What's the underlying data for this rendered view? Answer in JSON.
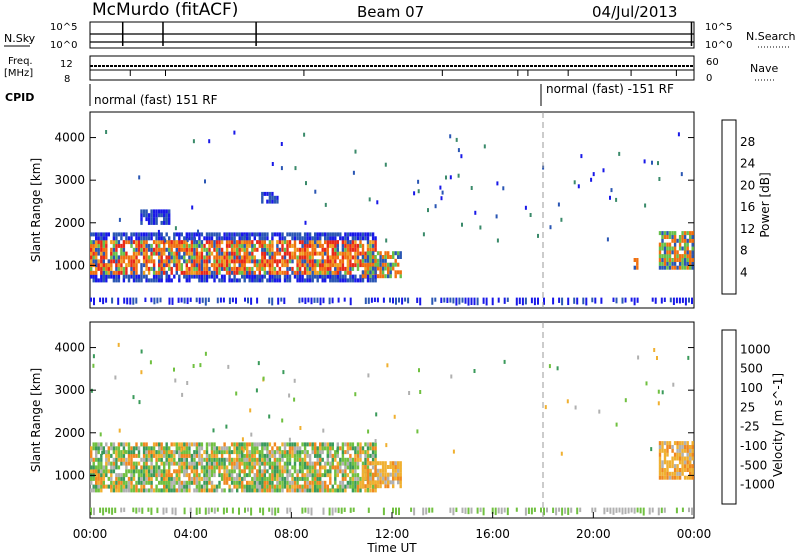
{
  "header": {
    "radar": "McMurdo (fitACF)",
    "beam": "Beam 07",
    "date": "04/Jul/2013"
  },
  "left_labels": {
    "nsky": "N.Sky",
    "freq_line1": "Freq.",
    "freq_line2": "[MHz]",
    "cpid": "CPID"
  },
  "right_labels": {
    "nsearch": "N.Search",
    "nave": "Nave"
  },
  "noise_axis": {
    "top": "10^5",
    "bottom": "10^0"
  },
  "freq_axis": {
    "left_top": "12",
    "left_bottom": "8",
    "right_top": "60",
    "right_bottom": "0"
  },
  "cpid_segments": [
    {
      "label": "normal (fast) 151 RF",
      "start_hour": 0
    },
    {
      "label": "normal (fast) -151 RF",
      "start_hour": 18
    }
  ],
  "chart_data": [
    {
      "type": "heatmap",
      "title": "Power",
      "ylabel": "Slant Range [km]",
      "xlabel": "Time UT",
      "colorbar_label": "Power [dB]",
      "colorbar_ticks": [
        "4",
        "8",
        "12",
        "16",
        "20",
        "24",
        "28"
      ],
      "colorbar_colors": [
        "#1818e8",
        "#2a56b4",
        "#3a8a6a",
        "#66c04a",
        "#c8d23a",
        "#f0a020",
        "#f07010",
        "#e82818"
      ],
      "x_range_hours": [
        0,
        24
      ],
      "ylim": [
        0,
        4600
      ],
      "yticks": [
        "1000",
        "2000",
        "3000",
        "4000"
      ],
      "xticks": [
        "00:00",
        "04:00",
        "08:00",
        "12:00",
        "16:00",
        "20:00",
        "00:00"
      ],
      "regions": [
        {
          "t0": 0.0,
          "t1": 11.3,
          "r0": 600,
          "r1": 1700,
          "level": "high"
        },
        {
          "t0": 10.8,
          "t1": 12.3,
          "r0": 700,
          "r1": 1300,
          "level": "mid"
        },
        {
          "t0": 2.0,
          "t1": 3.2,
          "r0": 1950,
          "r1": 2250,
          "level": "low"
        },
        {
          "t0": 6.8,
          "t1": 7.4,
          "r0": 2450,
          "r1": 2700,
          "level": "low"
        },
        {
          "t0": 22.6,
          "t1": 24.0,
          "r0": 900,
          "r1": 1800,
          "level": "mid"
        },
        {
          "t0": 21.6,
          "t1": 21.8,
          "r0": 900,
          "r1": 1100,
          "level": "mid"
        }
      ]
    },
    {
      "type": "heatmap",
      "title": "Velocity",
      "ylabel": "Slant Range [km]",
      "xlabel": "Time UT",
      "colorbar_label": "Velocity [m s^-1]",
      "colorbar_ticks": [
        "1000",
        "500",
        "100",
        "25",
        "-25",
        "-100",
        "-500",
        "-1000"
      ],
      "colorbar_colors": [
        "#2040c8",
        "#2a6aa0",
        "#3a9a5a",
        "#70c040",
        "#b0b0b0",
        "#f0b030",
        "#f08820",
        "#f05a18",
        "#e01818"
      ],
      "x_range_hours": [
        0,
        24
      ],
      "ylim": [
        0,
        4600
      ],
      "yticks": [
        "1000",
        "2000",
        "3000",
        "4000"
      ],
      "xticks": [
        "00:00",
        "04:00",
        "08:00",
        "12:00",
        "16:00",
        "20:00",
        "00:00"
      ],
      "regions": [
        {
          "t0": 0.0,
          "t1": 11.3,
          "r0": 600,
          "r1": 1700,
          "level": "mixed"
        },
        {
          "t0": 10.8,
          "t1": 12.3,
          "r0": 700,
          "r1": 1300,
          "level": "orange"
        },
        {
          "t0": 22.6,
          "t1": 24.0,
          "r0": 900,
          "r1": 1800,
          "level": "orange"
        }
      ]
    }
  ]
}
